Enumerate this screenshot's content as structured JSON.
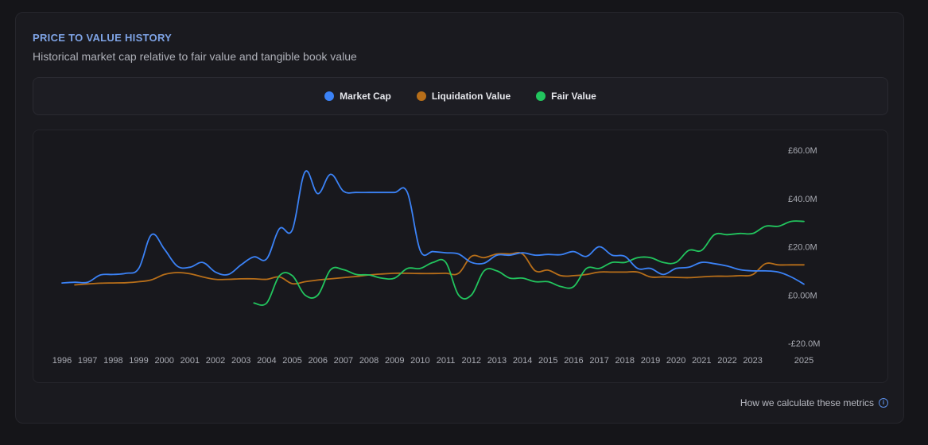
{
  "header": {
    "title": "PRICE TO VALUE HISTORY",
    "subtitle": "Historical market cap relative to fair value and tangible book value"
  },
  "footer": {
    "link_label": "How we calculate these metrics",
    "icon": "info-icon"
  },
  "chart_data": {
    "type": "line",
    "title": "",
    "xlabel": "",
    "ylabel": "",
    "ylim": [
      -20,
      60
    ],
    "y_ticks": [
      {
        "value": 60,
        "label": "£60.0M"
      },
      {
        "value": 40,
        "label": "£40.0M"
      },
      {
        "value": 20,
        "label": "£20.0M"
      },
      {
        "value": 0,
        "label": "£0.00M"
      },
      {
        "value": -20,
        "label": "-£20.0M"
      }
    ],
    "x_ticks": [
      1996,
      1997,
      1998,
      1999,
      2000,
      2001,
      2002,
      2003,
      2004,
      2005,
      2006,
      2007,
      2008,
      2009,
      2010,
      2011,
      2012,
      2013,
      2014,
      2015,
      2016,
      2017,
      2018,
      2019,
      2020,
      2021,
      2022,
      2023,
      2025
    ],
    "legend": [
      "Market Cap",
      "Liquidation Value",
      "Fair Value"
    ],
    "series": [
      {
        "name": "Market Cap",
        "color": "#3b82f6",
        "points": [
          [
            1996,
            5
          ],
          [
            1996.5,
            5.3
          ],
          [
            1997,
            5.3
          ],
          [
            1997.5,
            8.3
          ],
          [
            1998,
            8.5
          ],
          [
            1998.5,
            9
          ],
          [
            1999,
            11
          ],
          [
            1999.5,
            25
          ],
          [
            2000,
            19
          ],
          [
            2000.5,
            12
          ],
          [
            2001,
            11.5
          ],
          [
            2001.5,
            13.5
          ],
          [
            2002,
            9.5
          ],
          [
            2002.5,
            8.5
          ],
          [
            2003,
            12.5
          ],
          [
            2003.5,
            15.8
          ],
          [
            2004,
            15
          ],
          [
            2004.5,
            27.5
          ],
          [
            2005,
            27
          ],
          [
            2005.5,
            51
          ],
          [
            2006,
            42
          ],
          [
            2006.5,
            50
          ],
          [
            2007,
            43
          ],
          [
            2007.5,
            42.5
          ],
          [
            2008,
            42.5
          ],
          [
            2008.5,
            42.5
          ],
          [
            2009,
            42.5
          ],
          [
            2009.5,
            42.5
          ],
          [
            2010,
            18.5
          ],
          [
            2010.5,
            18
          ],
          [
            2011,
            17.5
          ],
          [
            2011.5,
            17
          ],
          [
            2012,
            13.5
          ],
          [
            2012.5,
            13.2
          ],
          [
            2013,
            16.5
          ],
          [
            2013.5,
            16.5
          ],
          [
            2014,
            17.5
          ],
          [
            2014.5,
            16.5
          ],
          [
            2015,
            16.8
          ],
          [
            2015.5,
            16.7
          ],
          [
            2016,
            18
          ],
          [
            2016.5,
            16
          ],
          [
            2017,
            20
          ],
          [
            2017.5,
            16.5
          ],
          [
            2018,
            16
          ],
          [
            2018.5,
            11
          ],
          [
            2019,
            11
          ],
          [
            2019.5,
            8.5
          ],
          [
            2020,
            11
          ],
          [
            2020.5,
            11.5
          ],
          [
            2021,
            13.5
          ],
          [
            2021.5,
            13
          ],
          [
            2022,
            12
          ],
          [
            2022.5,
            10.5
          ],
          [
            2023,
            10
          ],
          [
            2023.5,
            10
          ],
          [
            2024,
            9.5
          ],
          [
            2024.5,
            7.5
          ],
          [
            2025,
            4.5
          ]
        ]
      },
      {
        "name": "Liquidation Value",
        "color": "#b76e19",
        "points": [
          [
            1996.5,
            4.2
          ],
          [
            1997,
            4.6
          ],
          [
            1997.5,
            4.9
          ],
          [
            1998,
            5
          ],
          [
            1998.5,
            5.1
          ],
          [
            1999,
            5.5
          ],
          [
            1999.5,
            6.3
          ],
          [
            2000,
            8.5
          ],
          [
            2000.5,
            9.3
          ],
          [
            2001,
            8.8
          ],
          [
            2001.5,
            7.5
          ],
          [
            2002,
            6.5
          ],
          [
            2002.5,
            6.5
          ],
          [
            2003,
            6.7
          ],
          [
            2003.5,
            6.7
          ],
          [
            2004,
            6.5
          ],
          [
            2004.5,
            7.5
          ],
          [
            2005,
            4.7
          ],
          [
            2005.5,
            5.5
          ],
          [
            2006,
            6.2
          ],
          [
            2006.5,
            6.7
          ],
          [
            2007,
            7.2
          ],
          [
            2007.5,
            7.7
          ],
          [
            2008,
            8.3
          ],
          [
            2008.5,
            8.7
          ],
          [
            2009,
            9
          ],
          [
            2009.5,
            9
          ],
          [
            2010,
            8.9
          ],
          [
            2010.5,
            8.9
          ],
          [
            2011,
            9
          ],
          [
            2011.5,
            9
          ],
          [
            2012,
            16
          ],
          [
            2012.5,
            15.5
          ],
          [
            2013,
            17
          ],
          [
            2013.5,
            17
          ],
          [
            2014,
            17
          ],
          [
            2014.5,
            10
          ],
          [
            2015,
            10.3
          ],
          [
            2015.5,
            8
          ],
          [
            2016,
            8
          ],
          [
            2016.5,
            8.5
          ],
          [
            2017,
            9.5
          ],
          [
            2017.5,
            9.5
          ],
          [
            2018,
            9.5
          ],
          [
            2018.5,
            9.5
          ],
          [
            2019,
            7.5
          ],
          [
            2019.5,
            7.5
          ],
          [
            2020,
            7.3
          ],
          [
            2020.5,
            7.2
          ],
          [
            2021,
            7.5
          ],
          [
            2021.5,
            7.8
          ],
          [
            2022,
            7.8
          ],
          [
            2022.5,
            8
          ],
          [
            2023,
            8.5
          ],
          [
            2023.5,
            13
          ],
          [
            2024,
            12.5
          ],
          [
            2024.5,
            12.5
          ],
          [
            2025,
            12.5
          ]
        ]
      },
      {
        "name": "Fair Value",
        "color": "#22c55e",
        "points": [
          [
            2003.5,
            -3.3
          ],
          [
            2004,
            -3.3
          ],
          [
            2004.5,
            8
          ],
          [
            2005,
            8
          ],
          [
            2005.5,
            0
          ],
          [
            2006,
            0
          ],
          [
            2006.5,
            10.5
          ],
          [
            2007,
            10.5
          ],
          [
            2007.5,
            8.5
          ],
          [
            2008,
            8.3
          ],
          [
            2008.5,
            7
          ],
          [
            2009,
            7
          ],
          [
            2009.5,
            11
          ],
          [
            2010,
            11
          ],
          [
            2010.5,
            13.5
          ],
          [
            2011,
            13.5
          ],
          [
            2011.5,
            0
          ],
          [
            2012,
            0
          ],
          [
            2012.5,
            10
          ],
          [
            2013,
            10
          ],
          [
            2013.5,
            7
          ],
          [
            2014,
            7
          ],
          [
            2014.5,
            5.5
          ],
          [
            2015,
            5.5
          ],
          [
            2015.5,
            3.5
          ],
          [
            2016,
            3.5
          ],
          [
            2016.5,
            11
          ],
          [
            2017,
            11
          ],
          [
            2017.5,
            13.5
          ],
          [
            2018,
            13.5
          ],
          [
            2018.5,
            15.5
          ],
          [
            2019,
            15.5
          ],
          [
            2019.5,
            13.5
          ],
          [
            2020,
            13.5
          ],
          [
            2020.5,
            18.5
          ],
          [
            2021,
            18.5
          ],
          [
            2021.5,
            25
          ],
          [
            2022,
            25
          ],
          [
            2022.5,
            25.5
          ],
          [
            2023,
            25.5
          ],
          [
            2023.5,
            28.5
          ],
          [
            2024,
            28.5
          ],
          [
            2024.5,
            30.5
          ],
          [
            2025,
            30.5
          ]
        ]
      }
    ]
  }
}
